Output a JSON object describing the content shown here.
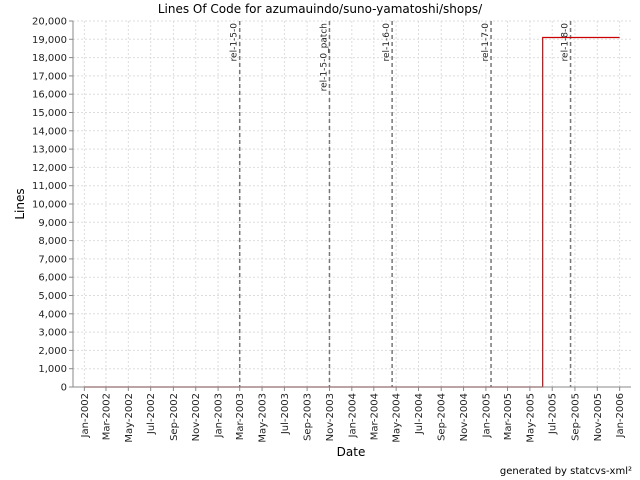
{
  "chart_data": {
    "type": "line",
    "title": "Lines Of Code for azumauindo/suno-yamatoshi/shops/",
    "xlabel": "Date",
    "ylabel": "Lines",
    "footer": "generated by statcvs-xml²",
    "xlim": [
      "2001-12-01",
      "2006-02-01"
    ],
    "ylim": [
      0,
      20000
    ],
    "yticks": [
      0,
      1000,
      2000,
      3000,
      4000,
      5000,
      6000,
      7000,
      8000,
      9000,
      10000,
      11000,
      12000,
      13000,
      14000,
      15000,
      16000,
      17000,
      18000,
      19000,
      20000
    ],
    "xticks": [
      {
        "date": "2002-01-01",
        "label": "Jan-2002"
      },
      {
        "date": "2002-03-01",
        "label": "Mar-2002"
      },
      {
        "date": "2002-05-01",
        "label": "May-2002"
      },
      {
        "date": "2002-07-01",
        "label": "Jul-2002"
      },
      {
        "date": "2002-09-01",
        "label": "Sep-2002"
      },
      {
        "date": "2002-11-01",
        "label": "Nov-2002"
      },
      {
        "date": "2003-01-01",
        "label": "Jan-2003"
      },
      {
        "date": "2003-03-01",
        "label": "Mar-2003"
      },
      {
        "date": "2003-05-01",
        "label": "May-2003"
      },
      {
        "date": "2003-07-01",
        "label": "Jul-2003"
      },
      {
        "date": "2003-09-01",
        "label": "Sep-2003"
      },
      {
        "date": "2003-11-01",
        "label": "Nov-2003"
      },
      {
        "date": "2004-01-01",
        "label": "Jan-2004"
      },
      {
        "date": "2004-03-01",
        "label": "Mar-2004"
      },
      {
        "date": "2004-05-01",
        "label": "May-2004"
      },
      {
        "date": "2004-07-01",
        "label": "Jul-2004"
      },
      {
        "date": "2004-09-01",
        "label": "Sep-2004"
      },
      {
        "date": "2004-11-01",
        "label": "Nov-2004"
      },
      {
        "date": "2005-01-01",
        "label": "Jan-2005"
      },
      {
        "date": "2005-03-01",
        "label": "Mar-2005"
      },
      {
        "date": "2005-05-01",
        "label": "May-2005"
      },
      {
        "date": "2005-07-01",
        "label": "Jul-2005"
      },
      {
        "date": "2005-09-01",
        "label": "Sep-2005"
      },
      {
        "date": "2005-11-01",
        "label": "Nov-2005"
      },
      {
        "date": "2006-01-01",
        "label": "Jan-2006"
      }
    ],
    "series": [
      {
        "color": "#cc0000",
        "points": [
          {
            "x": "2002-01-01",
            "y": 0
          },
          {
            "x": "2005-06-05",
            "y": 0
          },
          {
            "x": "2005-06-05",
            "y": 19100
          },
          {
            "x": "2006-01-01",
            "y": 19100
          }
        ]
      }
    ],
    "markers": [
      {
        "date": "2003-03-01",
        "label": "rel-1-5-0"
      },
      {
        "date": "2003-11-01",
        "label": "rel-1-5-0_patch"
      },
      {
        "date": "2004-04-20",
        "label": "rel-1-6-0"
      },
      {
        "date": "2005-01-15",
        "label": "rel-1-7-0"
      },
      {
        "date": "2005-08-20",
        "label": "rel-1-8-0"
      }
    ],
    "grid": true,
    "colors": {
      "line": "#cc0000",
      "marker": "#777777",
      "grid": "#dddddd"
    }
  }
}
